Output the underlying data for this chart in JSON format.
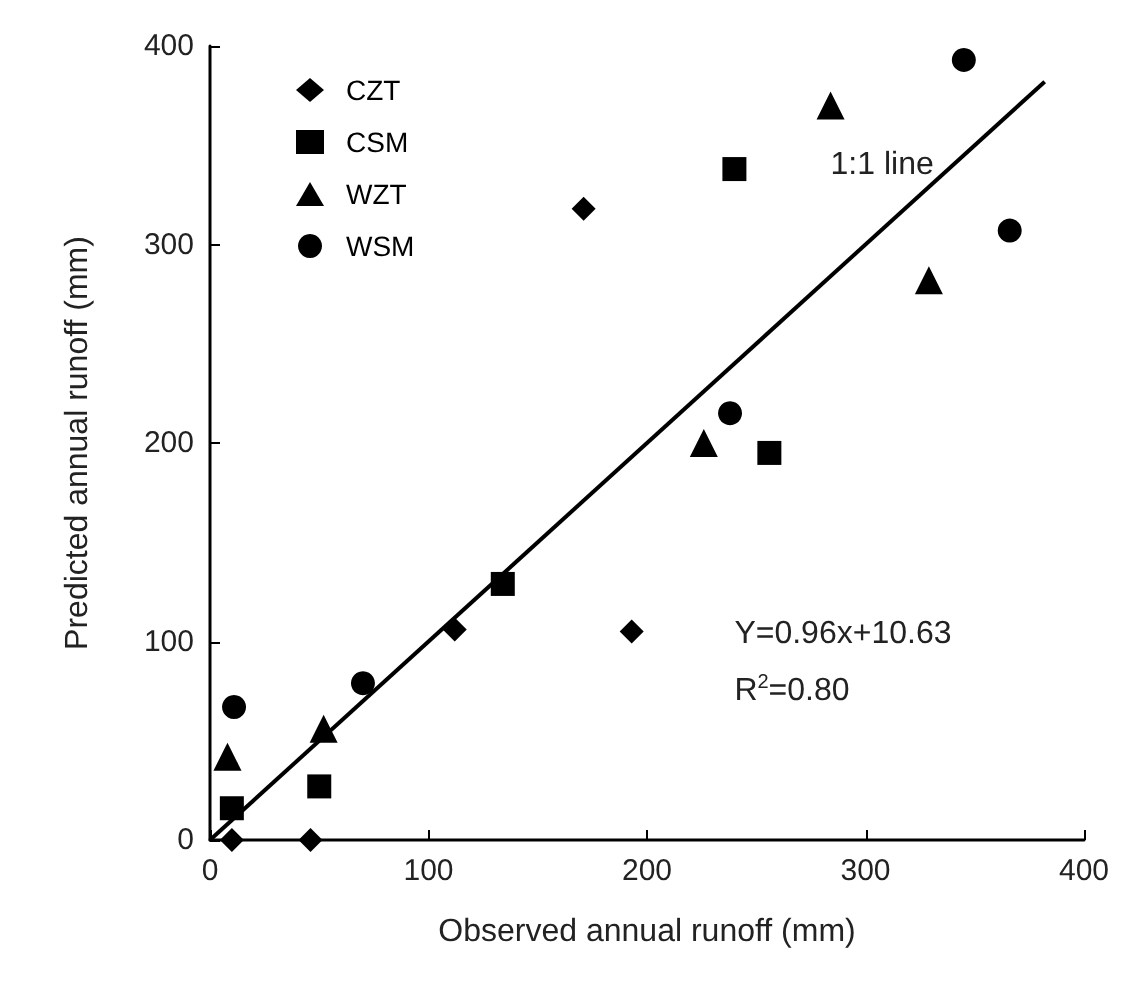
{
  "chart_data": {
    "type": "scatter",
    "xlabel": "Observed annual runoff (mm)",
    "ylabel": "Predicted annual runoff (mm)",
    "series": [
      {
        "name": "CZT",
        "color": "#000000",
        "marker": "diamond",
        "x": [
          10,
          46,
          112,
          193,
          171
        ],
        "values": [
          0,
          0,
          106,
          105,
          318
        ]
      },
      {
        "name": "CSM",
        "color": "#000000",
        "marker": "square",
        "x": [
          10,
          50,
          134,
          256,
          240
        ],
        "values": [
          16,
          27,
          129,
          195,
          338
        ]
      },
      {
        "name": "WZT",
        "color": "#000000",
        "marker": "triangle",
        "x": [
          8,
          52,
          226,
          284,
          329
        ],
        "values": [
          42,
          56,
          200,
          370,
          282
        ]
      },
      {
        "name": "WSM",
        "color": "#000000",
        "marker": "circle",
        "x": [
          11,
          70,
          238,
          345,
          366
        ],
        "values": [
          67,
          79,
          215,
          393,
          307
        ]
      },
      {
        "type": "line",
        "color": "#000000",
        "marker": "none",
        "line_style": "solid",
        "x": [
          0,
          382
        ],
        "values": [
          0,
          382
        ]
      }
    ],
    "annotations": [
      "1:1 line",
      "Y=0.96x+10.63",
      "R$^{2}$=0.80"
    ],
    "xlim": [
      0,
      400
    ],
    "ylim": [
      0,
      400
    ],
    "xticks": [
      0,
      100,
      200,
      300,
      400
    ],
    "yticks": [
      0,
      100,
      200,
      300,
      400
    ],
    "grid": false,
    "legend": "top left"
  }
}
